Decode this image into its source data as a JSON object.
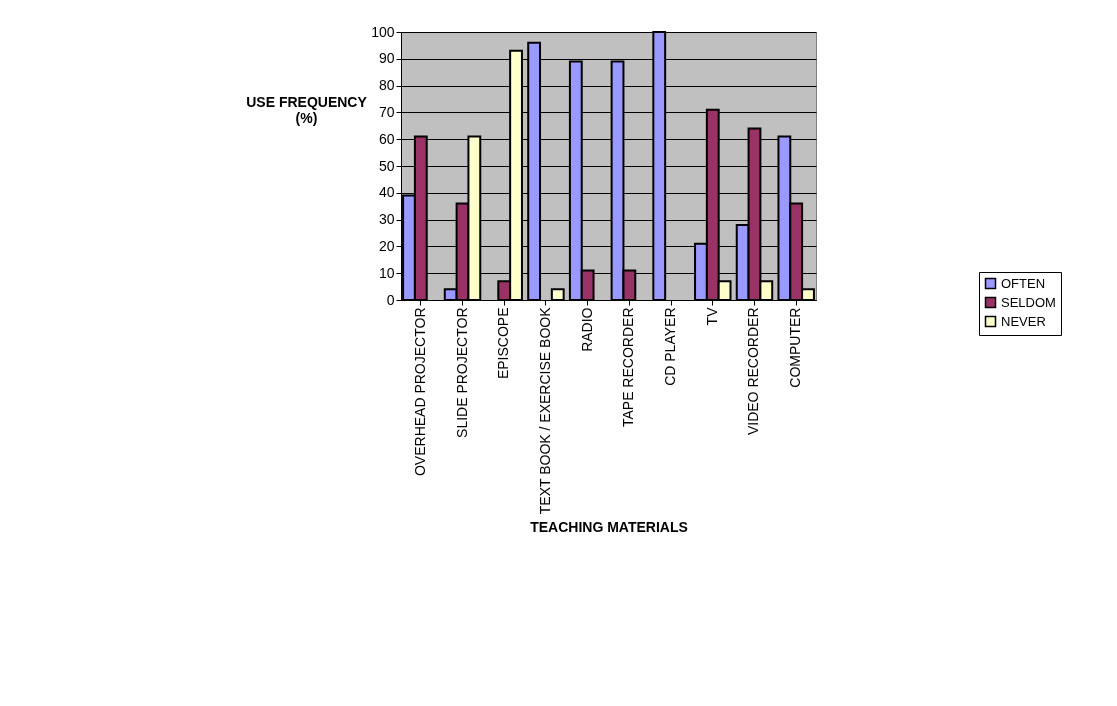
{
  "chart_data": {
    "type": "bar",
    "xlabel": "TEACHING MATERIALS",
    "ylabel": "USE FREQUENCY (%)",
    "categories": [
      "OVERHEAD PROJECTOR",
      "SLIDE PROJECTOR",
      "EPISCOPE",
      "TEXT BOOK / EXERCISE BOOK",
      "RADIO",
      "TAPE RECORDER",
      "CD PLAYER",
      "TV",
      "VIDEO RECORDER",
      "COMPUTER"
    ],
    "series": [
      {
        "name": "OFTEN",
        "color": "#9999ff",
        "values": [
          39,
          4,
          0,
          96,
          89,
          89,
          100,
          21,
          28,
          61
        ]
      },
      {
        "name": "SELDOM",
        "color": "#993366",
        "values": [
          61,
          36,
          7,
          0,
          11,
          11,
          0,
          71,
          64,
          36
        ]
      },
      {
        "name": "NEVER",
        "color": "#ffffcc",
        "values": [
          0,
          61,
          93,
          4,
          0,
          0,
          0,
          7,
          7,
          4
        ]
      }
    ],
    "ylim": [
      0,
      100
    ],
    "yticks": [
      0,
      10,
      20,
      30,
      40,
      50,
      60,
      70,
      80,
      90,
      100
    ],
    "grid": "y",
    "legend": "right"
  }
}
